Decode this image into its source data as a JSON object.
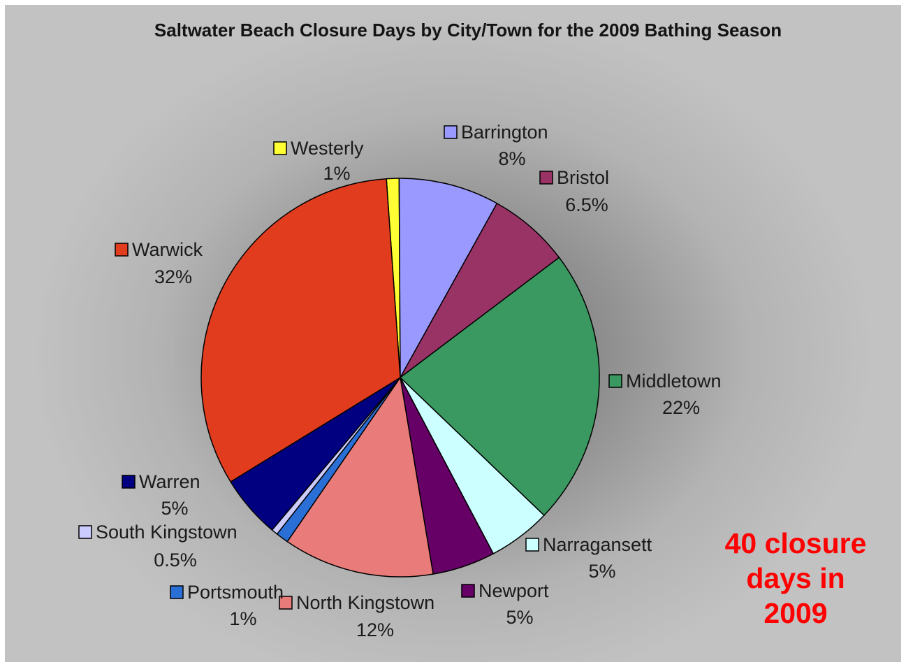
{
  "chart_data": {
    "type": "pie",
    "title": "Saltwater Beach Closure Days by City/Town for the 2009 Bathing Season",
    "slices": [
      {
        "label": "Westerly",
        "value": 1,
        "value_label": "1%",
        "color": "#ffff33"
      },
      {
        "label": "Barrington",
        "value": 8,
        "value_label": "8%",
        "color": "#9999ff"
      },
      {
        "label": "Bristol",
        "value": 6.5,
        "value_label": "6.5%",
        "color": "#993366"
      },
      {
        "label": "Middletown",
        "value": 22,
        "value_label": "22%",
        "color": "#3a9960"
      },
      {
        "label": "Narragansett",
        "value": 5,
        "value_label": "5%",
        "color": "#ccffff"
      },
      {
        "label": "Newport",
        "value": 5,
        "value_label": "5%",
        "color": "#660066"
      },
      {
        "label": "North Kingstown",
        "value": 12,
        "value_label": "12%",
        "color": "#ea7b7b"
      },
      {
        "label": "Portsmouth",
        "value": 1,
        "value_label": "1%",
        "color": "#2a6fd6"
      },
      {
        "label": "South Kingstown",
        "value": 0.5,
        "value_label": "0.5%",
        "color": "#ccccff"
      },
      {
        "label": "Warren",
        "value": 5,
        "value_label": "5%",
        "color": "#000080"
      },
      {
        "label": "Warwick",
        "value": 32,
        "value_label": "32%",
        "color": "#e13c1e"
      }
    ],
    "start_angle_deg": -4,
    "direction": "clockwise"
  },
  "annotation": {
    "line1": "40 closure",
    "line2": "days in",
    "line3": "2009",
    "color": "#ff0000"
  }
}
